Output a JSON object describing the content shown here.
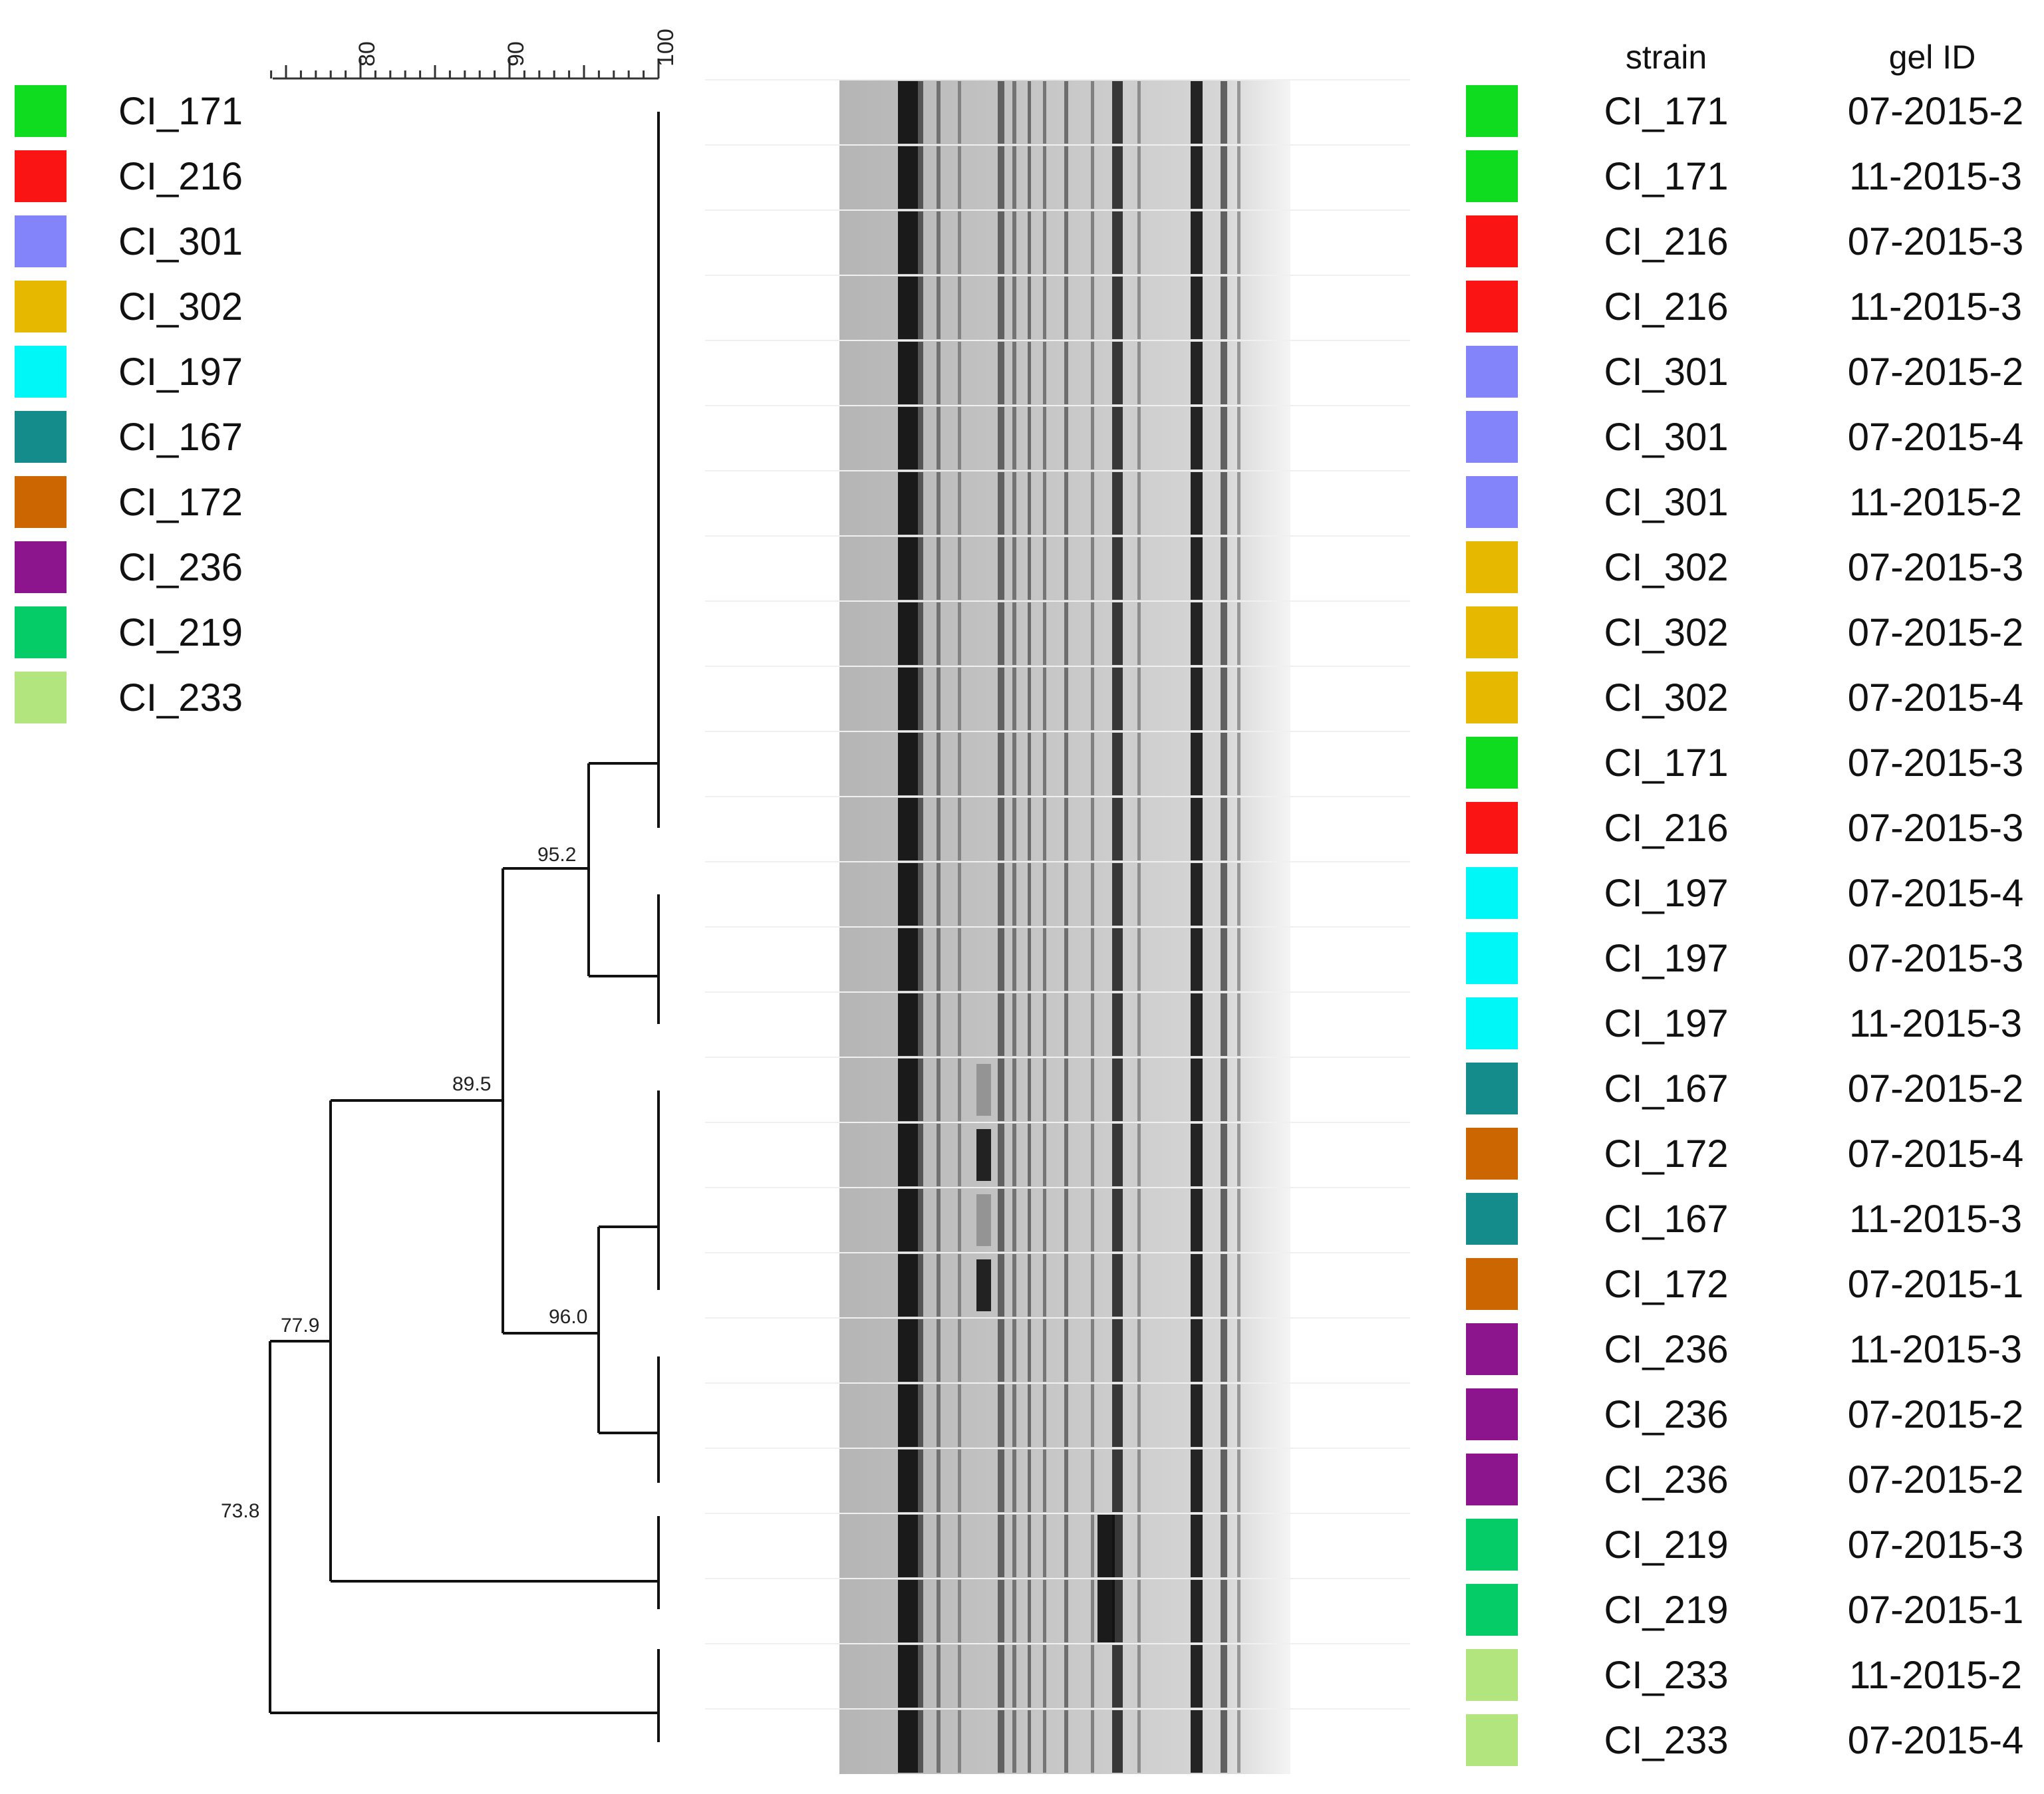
{
  "legend": [
    {
      "label": "CI_171",
      "color": "#0fdc1e"
    },
    {
      "label": "CI_216",
      "color": "#fa1414"
    },
    {
      "label": "CI_301",
      "color": "#8484fa"
    },
    {
      "label": "CI_302",
      "color": "#e6b800"
    },
    {
      "label": "CI_197",
      "color": "#00f7f7"
    },
    {
      "label": "CI_167",
      "color": "#148c8c"
    },
    {
      "label": "CI_172",
      "color": "#cc6600"
    },
    {
      "label": "CI_236",
      "color": "#8c148c"
    },
    {
      "label": "CI_219",
      "color": "#05cc66"
    },
    {
      "label": "CI_233",
      "color": "#b3e57f"
    }
  ],
  "similarity_axis": {
    "ticks": [
      "80",
      "90",
      "100"
    ],
    "min": 74,
    "max": 100
  },
  "table": {
    "headers": {
      "strain": "strain",
      "gel_id": "gel ID"
    },
    "rows": [
      {
        "strain": "CI_171",
        "gel_id": "07-2015-2",
        "color": "#0fdc1e"
      },
      {
        "strain": "CI_171",
        "gel_id": "11-2015-3",
        "color": "#0fdc1e"
      },
      {
        "strain": "CI_216",
        "gel_id": "07-2015-3",
        "color": "#fa1414"
      },
      {
        "strain": "CI_216",
        "gel_id": "11-2015-3",
        "color": "#fa1414"
      },
      {
        "strain": "CI_301",
        "gel_id": "07-2015-2",
        "color": "#8484fa"
      },
      {
        "strain": "CI_301",
        "gel_id": "07-2015-4",
        "color": "#8484fa"
      },
      {
        "strain": "CI_301",
        "gel_id": "11-2015-2",
        "color": "#8484fa"
      },
      {
        "strain": "CI_302",
        "gel_id": "07-2015-3",
        "color": "#e6b800"
      },
      {
        "strain": "CI_302",
        "gel_id": "07-2015-2",
        "color": "#e6b800"
      },
      {
        "strain": "CI_302",
        "gel_id": "07-2015-4",
        "color": "#e6b800"
      },
      {
        "strain": "CI_171",
        "gel_id": "07-2015-3",
        "color": "#0fdc1e"
      },
      {
        "strain": "CI_216",
        "gel_id": "07-2015-3",
        "color": "#fa1414"
      },
      {
        "strain": "CI_197",
        "gel_id": "07-2015-4",
        "color": "#00f7f7"
      },
      {
        "strain": "CI_197",
        "gel_id": "07-2015-3",
        "color": "#00f7f7"
      },
      {
        "strain": "CI_197",
        "gel_id": "11-2015-3",
        "color": "#00f7f7"
      },
      {
        "strain": "CI_167",
        "gel_id": "07-2015-2",
        "color": "#148c8c"
      },
      {
        "strain": "CI_172",
        "gel_id": "07-2015-4",
        "color": "#cc6600"
      },
      {
        "strain": "CI_167",
        "gel_id": "11-2015-3",
        "color": "#148c8c"
      },
      {
        "strain": "CI_172",
        "gel_id": "07-2015-1",
        "color": "#cc6600"
      },
      {
        "strain": "CI_236",
        "gel_id": "11-2015-3",
        "color": "#8c148c"
      },
      {
        "strain": "CI_236",
        "gel_id": "07-2015-2",
        "color": "#8c148c"
      },
      {
        "strain": "CI_236",
        "gel_id": "07-2015-2",
        "color": "#8c148c"
      },
      {
        "strain": "CI_219",
        "gel_id": "07-2015-3",
        "color": "#05cc66"
      },
      {
        "strain": "CI_219",
        "gel_id": "07-2015-1",
        "color": "#05cc66"
      },
      {
        "strain": "CI_233",
        "gel_id": "11-2015-2",
        "color": "#b3e57f"
      },
      {
        "strain": "CI_233",
        "gel_id": "07-2015-4",
        "color": "#b3e57f"
      }
    ]
  },
  "dendrogram": {
    "nodes": [
      {
        "id": "n952",
        "label": "95.2",
        "similarity": 95.2
      },
      {
        "id": "n960",
        "label": "96.0",
        "similarity": 96.0
      },
      {
        "id": "n895",
        "label": "89.5",
        "similarity": 89.5
      },
      {
        "id": "n779",
        "label": "77.9",
        "similarity": 77.9
      },
      {
        "id": "n738",
        "label": "73.8",
        "similarity": 73.8
      }
    ]
  }
}
